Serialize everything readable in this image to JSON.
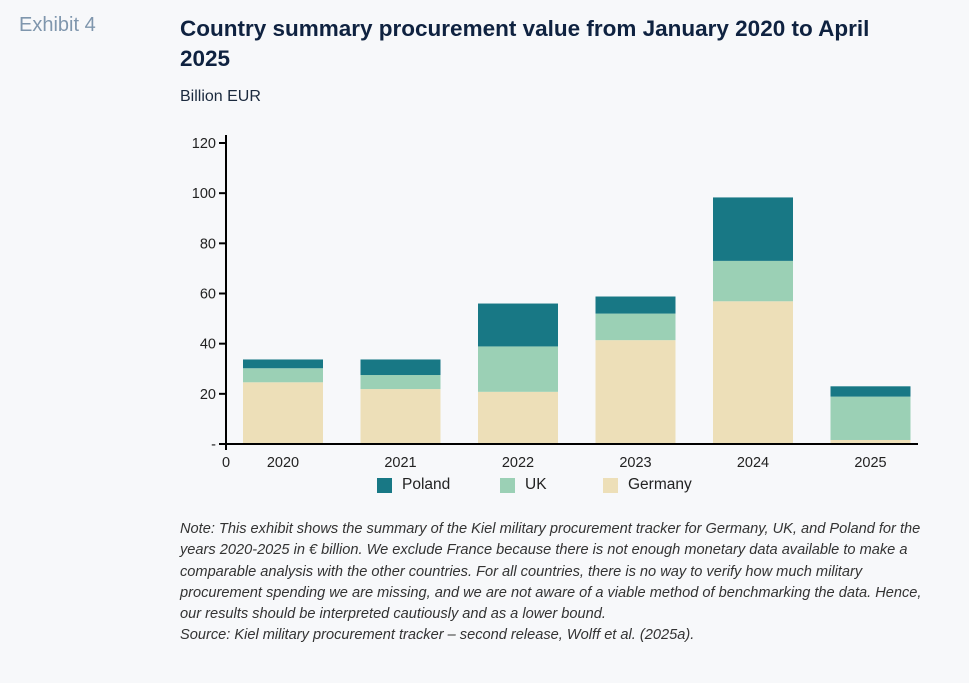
{
  "exhibit_label": "Exhibit 4",
  "title": "Country summary procurement value from January 2020 to April 2025",
  "unit_label": "Billion EUR",
  "note": "Note: This exhibit shows the summary of the Kiel military procurement tracker for Germany, UK, and Poland for the years 2020-2025 in € billion. We exclude France because there is not enough monetary data available to make a comparable analysis with the other countries. For all countries, there is no way to verify how much military procurement spending we are missing, and we are not aware of a viable method of benchmarking the data. Hence, our results should be interpreted cautiously and as a lower bound.",
  "source": "Source: Kiel military procurement tracker – second release, Wolff et al. (2025a).",
  "chart_data": {
    "type": "bar",
    "stacked": true,
    "title": "Country summary procurement value from January 2020 to April 2025",
    "ylabel": "Billion EUR",
    "xlabel": "",
    "categories": [
      "2020",
      "2021",
      "2022",
      "2023",
      "2024",
      "2025"
    ],
    "series": [
      {
        "name": "Germany",
        "color": "#eddfb8",
        "values": [
          24.6,
          21.9,
          20.8,
          41.4,
          56.9,
          1.6
        ]
      },
      {
        "name": "UK",
        "color": "#9bd0b5",
        "values": [
          5.6,
          5.6,
          18.1,
          10.6,
          16.1,
          17.3
        ]
      },
      {
        "name": "Poland",
        "color": "#187885",
        "values": [
          3.5,
          6.2,
          17.1,
          6.8,
          25.3,
          4.1
        ]
      }
    ],
    "ylim": [
      0,
      120
    ],
    "y_ticks": [
      0,
      20,
      40,
      60,
      80,
      100,
      120
    ],
    "y_tick_labels": [
      "-",
      "20",
      "40",
      "60",
      "80",
      "100",
      "120"
    ],
    "x_origin_label": "0",
    "grid": false,
    "legend": {
      "position": "bottom",
      "order": [
        "Poland",
        "UK",
        "Germany"
      ]
    }
  }
}
